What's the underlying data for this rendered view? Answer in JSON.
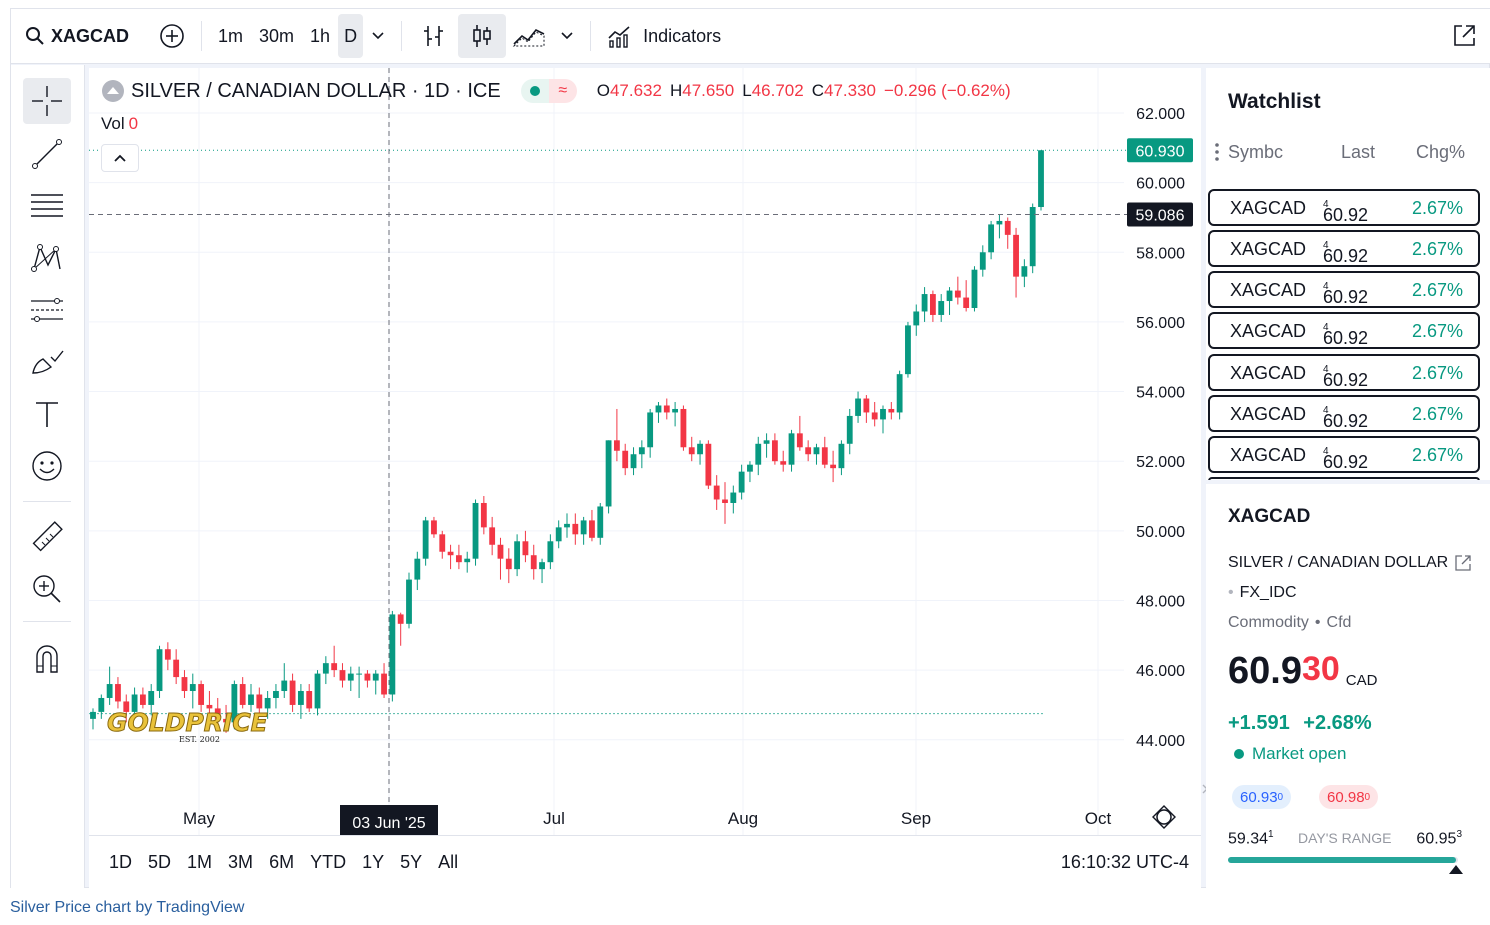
{
  "toolbar": {
    "symbol": "XAGCAD",
    "intervals": [
      "1m",
      "30m",
      "1h",
      "D"
    ],
    "active_interval": "D",
    "indicators_label": "Indicators"
  },
  "legend": {
    "title": "SILVER / CANADIAN DOLLAR · 1D · ICE",
    "open_label": "O",
    "open": "47.632",
    "high_label": "H",
    "high": "47.650",
    "low_label": "L",
    "low": "46.702",
    "close_label": "C",
    "close": "47.330",
    "change": "−0.296 (−0.62%)",
    "vol_label": "Vol",
    "vol_value": "0"
  },
  "chart_data": {
    "type": "candlestick",
    "x_ticks": [
      "May",
      "03 Jun '25",
      "Jul",
      "Aug",
      "Sep",
      "Oct"
    ],
    "y_ticks": [
      "62.000",
      "60.000",
      "58.000",
      "56.000",
      "54.000",
      "52.000",
      "50.000",
      "48.000",
      "46.000",
      "44.000"
    ],
    "ylim": [
      43,
      62.5
    ],
    "last_price": "60.930",
    "crosshair_price": "59.086",
    "crosshair_date": "03 Jun '25",
    "candles": [
      [
        44.6,
        44.9,
        44.3,
        44.8
      ],
      [
        44.8,
        45.3,
        44.6,
        45.2
      ],
      [
        45.2,
        46.1,
        45.0,
        45.6
      ],
      [
        45.6,
        45.8,
        44.9,
        45.1
      ],
      [
        45.1,
        45.3,
        44.5,
        44.8
      ],
      [
        44.8,
        45.5,
        44.6,
        45.3
      ],
      [
        45.3,
        45.5,
        44.9,
        45.0
      ],
      [
        45.0,
        45.6,
        44.7,
        45.4
      ],
      [
        45.4,
        46.7,
        45.2,
        46.6
      ],
      [
        46.6,
        46.8,
        46.0,
        46.3
      ],
      [
        46.3,
        46.6,
        45.6,
        45.8
      ],
      [
        45.8,
        46.0,
        45.2,
        45.4
      ],
      [
        45.4,
        45.9,
        44.9,
        45.6
      ],
      [
        45.6,
        45.7,
        44.8,
        45.0
      ],
      [
        45.0,
        45.4,
        44.6,
        44.9
      ],
      [
        44.9,
        45.2,
        44.3,
        44.6
      ],
      [
        44.6,
        45.0,
        44.2,
        44.5
      ],
      [
        44.5,
        45.7,
        44.3,
        45.6
      ],
      [
        45.6,
        45.8,
        44.9,
        45.0
      ],
      [
        45.0,
        45.6,
        44.8,
        45.3
      ],
      [
        45.3,
        45.5,
        44.7,
        44.9
      ],
      [
        44.9,
        45.4,
        44.6,
        45.2
      ],
      [
        45.2,
        45.6,
        44.9,
        45.4
      ],
      [
        45.4,
        46.2,
        45.2,
        45.7
      ],
      [
        45.7,
        45.9,
        44.8,
        45.0
      ],
      [
        45.0,
        45.6,
        44.6,
        45.4
      ],
      [
        45.4,
        45.6,
        44.8,
        44.9
      ],
      [
        44.9,
        46.0,
        44.7,
        45.9
      ],
      [
        45.9,
        46.4,
        45.6,
        46.2
      ],
      [
        46.2,
        46.7,
        45.8,
        46.0
      ],
      [
        46.0,
        46.2,
        45.5,
        45.7
      ],
      [
        45.7,
        46.1,
        45.4,
        45.9
      ],
      [
        45.9,
        46.1,
        45.2,
        45.9
      ],
      [
        45.9,
        46.0,
        45.5,
        45.7
      ],
      [
        45.7,
        46.0,
        45.3,
        45.9
      ],
      [
        45.9,
        46.2,
        45.2,
        45.3
      ],
      [
        45.3,
        47.7,
        45.1,
        47.6
      ],
      [
        47.6,
        47.65,
        46.7,
        47.33
      ],
      [
        47.33,
        48.8,
        47.2,
        48.6
      ],
      [
        48.6,
        49.4,
        48.3,
        49.2
      ],
      [
        49.2,
        50.4,
        49.0,
        50.3
      ],
      [
        50.3,
        50.4,
        49.8,
        49.9
      ],
      [
        49.9,
        50.0,
        49.2,
        49.4
      ],
      [
        49.4,
        49.6,
        48.9,
        49.3
      ],
      [
        49.3,
        49.6,
        48.9,
        49.1
      ],
      [
        49.1,
        49.4,
        48.8,
        49.2
      ],
      [
        49.2,
        50.9,
        49.0,
        50.8
      ],
      [
        50.8,
        51.0,
        49.9,
        50.1
      ],
      [
        50.1,
        50.4,
        49.3,
        49.6
      ],
      [
        49.6,
        49.8,
        48.6,
        49.2
      ],
      [
        49.2,
        49.5,
        48.5,
        48.9
      ],
      [
        48.9,
        49.9,
        48.7,
        49.7
      ],
      [
        49.7,
        50.0,
        49.1,
        49.3
      ],
      [
        49.3,
        49.6,
        48.6,
        48.9
      ],
      [
        48.9,
        49.2,
        48.5,
        49.1
      ],
      [
        49.1,
        49.9,
        48.9,
        49.7
      ],
      [
        49.7,
        50.3,
        49.5,
        50.1
      ],
      [
        50.1,
        50.5,
        49.8,
        50.2
      ],
      [
        50.2,
        50.5,
        49.6,
        49.9
      ],
      [
        49.9,
        50.4,
        49.6,
        50.3
      ],
      [
        50.3,
        50.6,
        49.7,
        49.8
      ],
      [
        49.8,
        50.8,
        49.6,
        50.7
      ],
      [
        50.7,
        52.6,
        50.5,
        52.6
      ],
      [
        52.6,
        53.5,
        52.0,
        52.3
      ],
      [
        52.3,
        52.5,
        51.6,
        51.8
      ],
      [
        51.8,
        52.4,
        51.6,
        52.2
      ],
      [
        52.2,
        52.6,
        51.8,
        52.4
      ],
      [
        52.4,
        53.5,
        52.1,
        53.4
      ],
      [
        53.4,
        53.7,
        53.1,
        53.6
      ],
      [
        53.6,
        53.8,
        53.2,
        53.4
      ],
      [
        53.4,
        53.7,
        53.0,
        53.5
      ],
      [
        53.5,
        53.6,
        52.3,
        52.4
      ],
      [
        52.4,
        52.7,
        52.0,
        52.2
      ],
      [
        52.2,
        52.6,
        51.9,
        52.5
      ],
      [
        52.5,
        52.6,
        51.2,
        51.3
      ],
      [
        51.3,
        51.6,
        50.6,
        50.9
      ],
      [
        50.9,
        51.4,
        50.2,
        50.8
      ],
      [
        50.8,
        51.3,
        50.5,
        51.1
      ],
      [
        51.1,
        51.9,
        50.9,
        51.7
      ],
      [
        51.7,
        52.0,
        51.4,
        51.9
      ],
      [
        51.9,
        52.7,
        51.6,
        52.5
      ],
      [
        52.5,
        52.8,
        52.1,
        52.6
      ],
      [
        52.6,
        52.8,
        51.9,
        52.0
      ],
      [
        52.0,
        52.3,
        51.7,
        51.9
      ],
      [
        51.9,
        52.9,
        51.7,
        52.8
      ],
      [
        52.8,
        53.3,
        52.3,
        52.4
      ],
      [
        52.4,
        52.6,
        52.0,
        52.2
      ],
      [
        52.2,
        52.5,
        51.9,
        52.4
      ],
      [
        52.4,
        52.7,
        51.8,
        51.9
      ],
      [
        51.9,
        52.3,
        51.4,
        51.8
      ],
      [
        51.8,
        52.6,
        51.6,
        52.5
      ],
      [
        52.5,
        53.5,
        52.2,
        53.3
      ],
      [
        53.3,
        54.0,
        53.1,
        53.8
      ],
      [
        53.8,
        53.9,
        53.1,
        53.4
      ],
      [
        53.4,
        53.7,
        53.0,
        53.2
      ],
      [
        53.2,
        53.6,
        52.8,
        53.5
      ],
      [
        53.5,
        53.7,
        53.2,
        53.4
      ],
      [
        53.4,
        54.6,
        53.2,
        54.5
      ],
      [
        54.5,
        56.0,
        54.4,
        55.9
      ],
      [
        55.9,
        56.5,
        55.6,
        56.3
      ],
      [
        56.3,
        57.0,
        56.0,
        56.8
      ],
      [
        56.8,
        56.9,
        56.0,
        56.2
      ],
      [
        56.2,
        56.8,
        56.0,
        56.6
      ],
      [
        56.6,
        57.0,
        56.2,
        56.9
      ],
      [
        56.9,
        57.3,
        56.5,
        56.7
      ],
      [
        56.7,
        57.2,
        56.3,
        56.4
      ],
      [
        56.4,
        57.6,
        56.3,
        57.5
      ],
      [
        57.5,
        58.2,
        57.3,
        58.0
      ],
      [
        58.0,
        58.9,
        57.8,
        58.8
      ],
      [
        58.8,
        59.1,
        58.4,
        58.9
      ],
      [
        58.9,
        59.0,
        58.1,
        58.5
      ],
      [
        58.5,
        58.7,
        56.7,
        57.3
      ],
      [
        57.3,
        57.8,
        57.0,
        57.6
      ],
      [
        57.6,
        59.4,
        57.4,
        59.3
      ],
      [
        59.3,
        60.93,
        59.2,
        60.93
      ]
    ]
  },
  "range_bar": {
    "ranges": [
      "1D",
      "5D",
      "1M",
      "3M",
      "6M",
      "YTD",
      "1Y",
      "5Y",
      "All"
    ],
    "clock": "16:10:32 UTC-4"
  },
  "watchlist": {
    "title": "Watchlist",
    "col_symbol": "Symbc",
    "col_last": "Last",
    "col_chg": "Chg%",
    "rows": [
      {
        "symbol": "XAGCAD",
        "last": "60.92",
        "last_sup": "4",
        "chg": "2.67%"
      },
      {
        "symbol": "XAGCAD",
        "last": "60.92",
        "last_sup": "4",
        "chg": "2.67%"
      },
      {
        "symbol": "XAGCAD",
        "last": "60.92",
        "last_sup": "4",
        "chg": "2.67%"
      },
      {
        "symbol": "XAGCAD",
        "last": "60.92",
        "last_sup": "4",
        "chg": "2.67%"
      },
      {
        "symbol": "XAGCAD",
        "last": "60.92",
        "last_sup": "4",
        "chg": "2.67%"
      },
      {
        "symbol": "XAGCAD",
        "last": "60.92",
        "last_sup": "4",
        "chg": "2.67%"
      },
      {
        "symbol": "XAGCAD",
        "last": "60.92",
        "last_sup": "4",
        "chg": "2.67%"
      }
    ]
  },
  "detail": {
    "symbol": "XAGCAD",
    "name": "SILVER / CANADIAN DOLLAR",
    "exchange": "FX_IDC",
    "category": "Commodity",
    "subcategory": "Cfd",
    "price_main": "60.9",
    "price_frac": "30",
    "currency": "CAD",
    "change": "+1.591",
    "change_pct": "+2.68%",
    "market_status": "Market open",
    "bid": "60.93",
    "bid_sup": "0",
    "ask": "60.98",
    "ask_sup": "0",
    "range_low": "59.34",
    "range_low_sup": "1",
    "range_label": "DAY'S RANGE",
    "range_high": "60.95",
    "range_high_sup": "3",
    "range_fill": 0.99
  },
  "logo": {
    "text": "GOLDPRICE",
    "sub": "EST. 2002"
  },
  "footer": {
    "text": "Silver Price chart by TradingView"
  },
  "colors": {
    "up": "#089981",
    "down": "#f23645",
    "accent": "#2962ff"
  }
}
